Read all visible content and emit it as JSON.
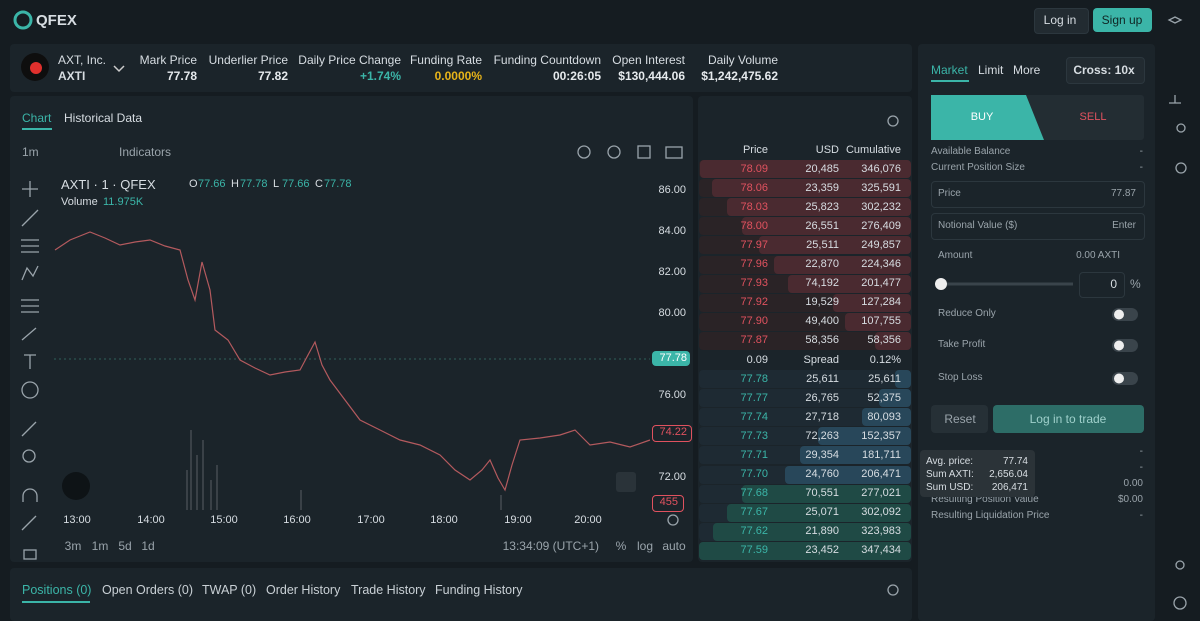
{
  "header": {
    "logo": "QFEX",
    "login": "Log in",
    "signup": "Sign up"
  },
  "ticker": {
    "name": "AXT, Inc.",
    "symbol": "AXTI",
    "stats": [
      {
        "label": "Mark Price",
        "value": "77.78"
      },
      {
        "label": "Underlier Price",
        "value": "77.82"
      },
      {
        "label": "Daily Price Change",
        "value": "+1.74%"
      },
      {
        "label": "Funding Rate",
        "value": "0.0000%"
      },
      {
        "label": "Funding Countdown",
        "value": "00:26:05"
      },
      {
        "label": "Open Interest",
        "value": "$130,444.06"
      },
      {
        "label": "Daily Volume",
        "value": "$1,242,475.62"
      }
    ]
  },
  "chart": {
    "tabs": [
      "Chart",
      "Historical Data"
    ],
    "interval": "1m",
    "indicators": "Indicators",
    "legend": "AXTI · 1 · QFEX",
    "ohlc": [
      {
        "key": "O",
        "value": "77.66"
      },
      {
        "key": "H",
        "value": "77.78"
      },
      {
        "key": "L",
        "value": "77.66"
      },
      {
        "key": "C",
        "value": "77.78"
      }
    ],
    "volume_label": "Volume",
    "volume_value": "11.975K",
    "price_axis": [
      "86.00",
      "84.00",
      "82.00",
      "80.00",
      "76.00",
      "72.00"
    ],
    "last_price": "77.78",
    "low_price": "74.22",
    "volume_marker": "455",
    "time_axis": [
      "13:00",
      "14:00",
      "15:00",
      "16:00",
      "17:00",
      "18:00",
      "19:00",
      "20:00"
    ],
    "ranges": [
      "3m",
      "1m",
      "5d",
      "1d"
    ],
    "clock": "13:34:09 (UTC+1)",
    "scale_options": [
      "%",
      "log",
      "auto"
    ]
  },
  "orderbook": {
    "headers": [
      "Price",
      "USD",
      "Cumulative"
    ],
    "asks": [
      [
        "78.09",
        "20,485",
        "346,076"
      ],
      [
        "78.06",
        "23,359",
        "325,591"
      ],
      [
        "78.03",
        "25,823",
        "302,232"
      ],
      [
        "78.00",
        "26,551",
        "276,409"
      ],
      [
        "77.97",
        "25,511",
        "249,857"
      ],
      [
        "77.96",
        "22,870",
        "224,346"
      ],
      [
        "77.93",
        "74,192",
        "201,477"
      ],
      [
        "77.92",
        "19,529",
        "127,284"
      ],
      [
        "77.90",
        "49,400",
        "107,755"
      ],
      [
        "77.87",
        "58,356",
        "58,356"
      ]
    ],
    "spread": [
      "0.09",
      "Spread",
      "0.12%"
    ],
    "bids": [
      [
        "77.78",
        "25,611",
        "25,611"
      ],
      [
        "77.77",
        "26,765",
        "52,375"
      ],
      [
        "77.74",
        "27,718",
        "80,093"
      ],
      [
        "77.73",
        "72,263",
        "152,357"
      ],
      [
        "77.71",
        "29,354",
        "181,711"
      ],
      [
        "77.70",
        "24,760",
        "206,471"
      ],
      [
        "77.68",
        "70,551",
        "277,021"
      ],
      [
        "77.67",
        "25,071",
        "302,092"
      ],
      [
        "77.62",
        "21,890",
        "323,983"
      ],
      [
        "77.59",
        "23,452",
        "347,434"
      ]
    ]
  },
  "tooltip": [
    [
      "Avg. price:",
      "77.74"
    ],
    [
      "Sum AXTI:",
      "2,656.04"
    ],
    [
      "Sum USD:",
      "206,471"
    ]
  ],
  "form": {
    "tabs": [
      "Market",
      "Limit",
      "More"
    ],
    "margin": "Cross: 10x",
    "buy": "BUY",
    "sell": "SELL",
    "info": [
      [
        "Available Balance",
        "-"
      ],
      [
        "Current Position Size",
        "-"
      ]
    ],
    "price_label": "Price",
    "price_value": "77.87",
    "notional_label": "Notional Value ($)",
    "notional_value": "Enter",
    "amount_label": "Amount",
    "amount_value": "0.00 AXTI",
    "slider_value": "0",
    "percent": "%",
    "toggles": [
      "Reduce Only",
      "Take Profit",
      "Stop Loss"
    ],
    "reset": "Reset",
    "submit": "Log in to trade",
    "hidden_values": [
      "-",
      "-",
      "0.00"
    ],
    "summary": [
      [
        "Resulting Position Value",
        "$0.00"
      ],
      [
        "Resulting Liquidation Price",
        "-"
      ]
    ]
  },
  "bottom_tabs": [
    "Positions (0)",
    "Open Orders (0)",
    "TWAP (0)",
    "Order History",
    "Trade History",
    "Funding History"
  ]
}
